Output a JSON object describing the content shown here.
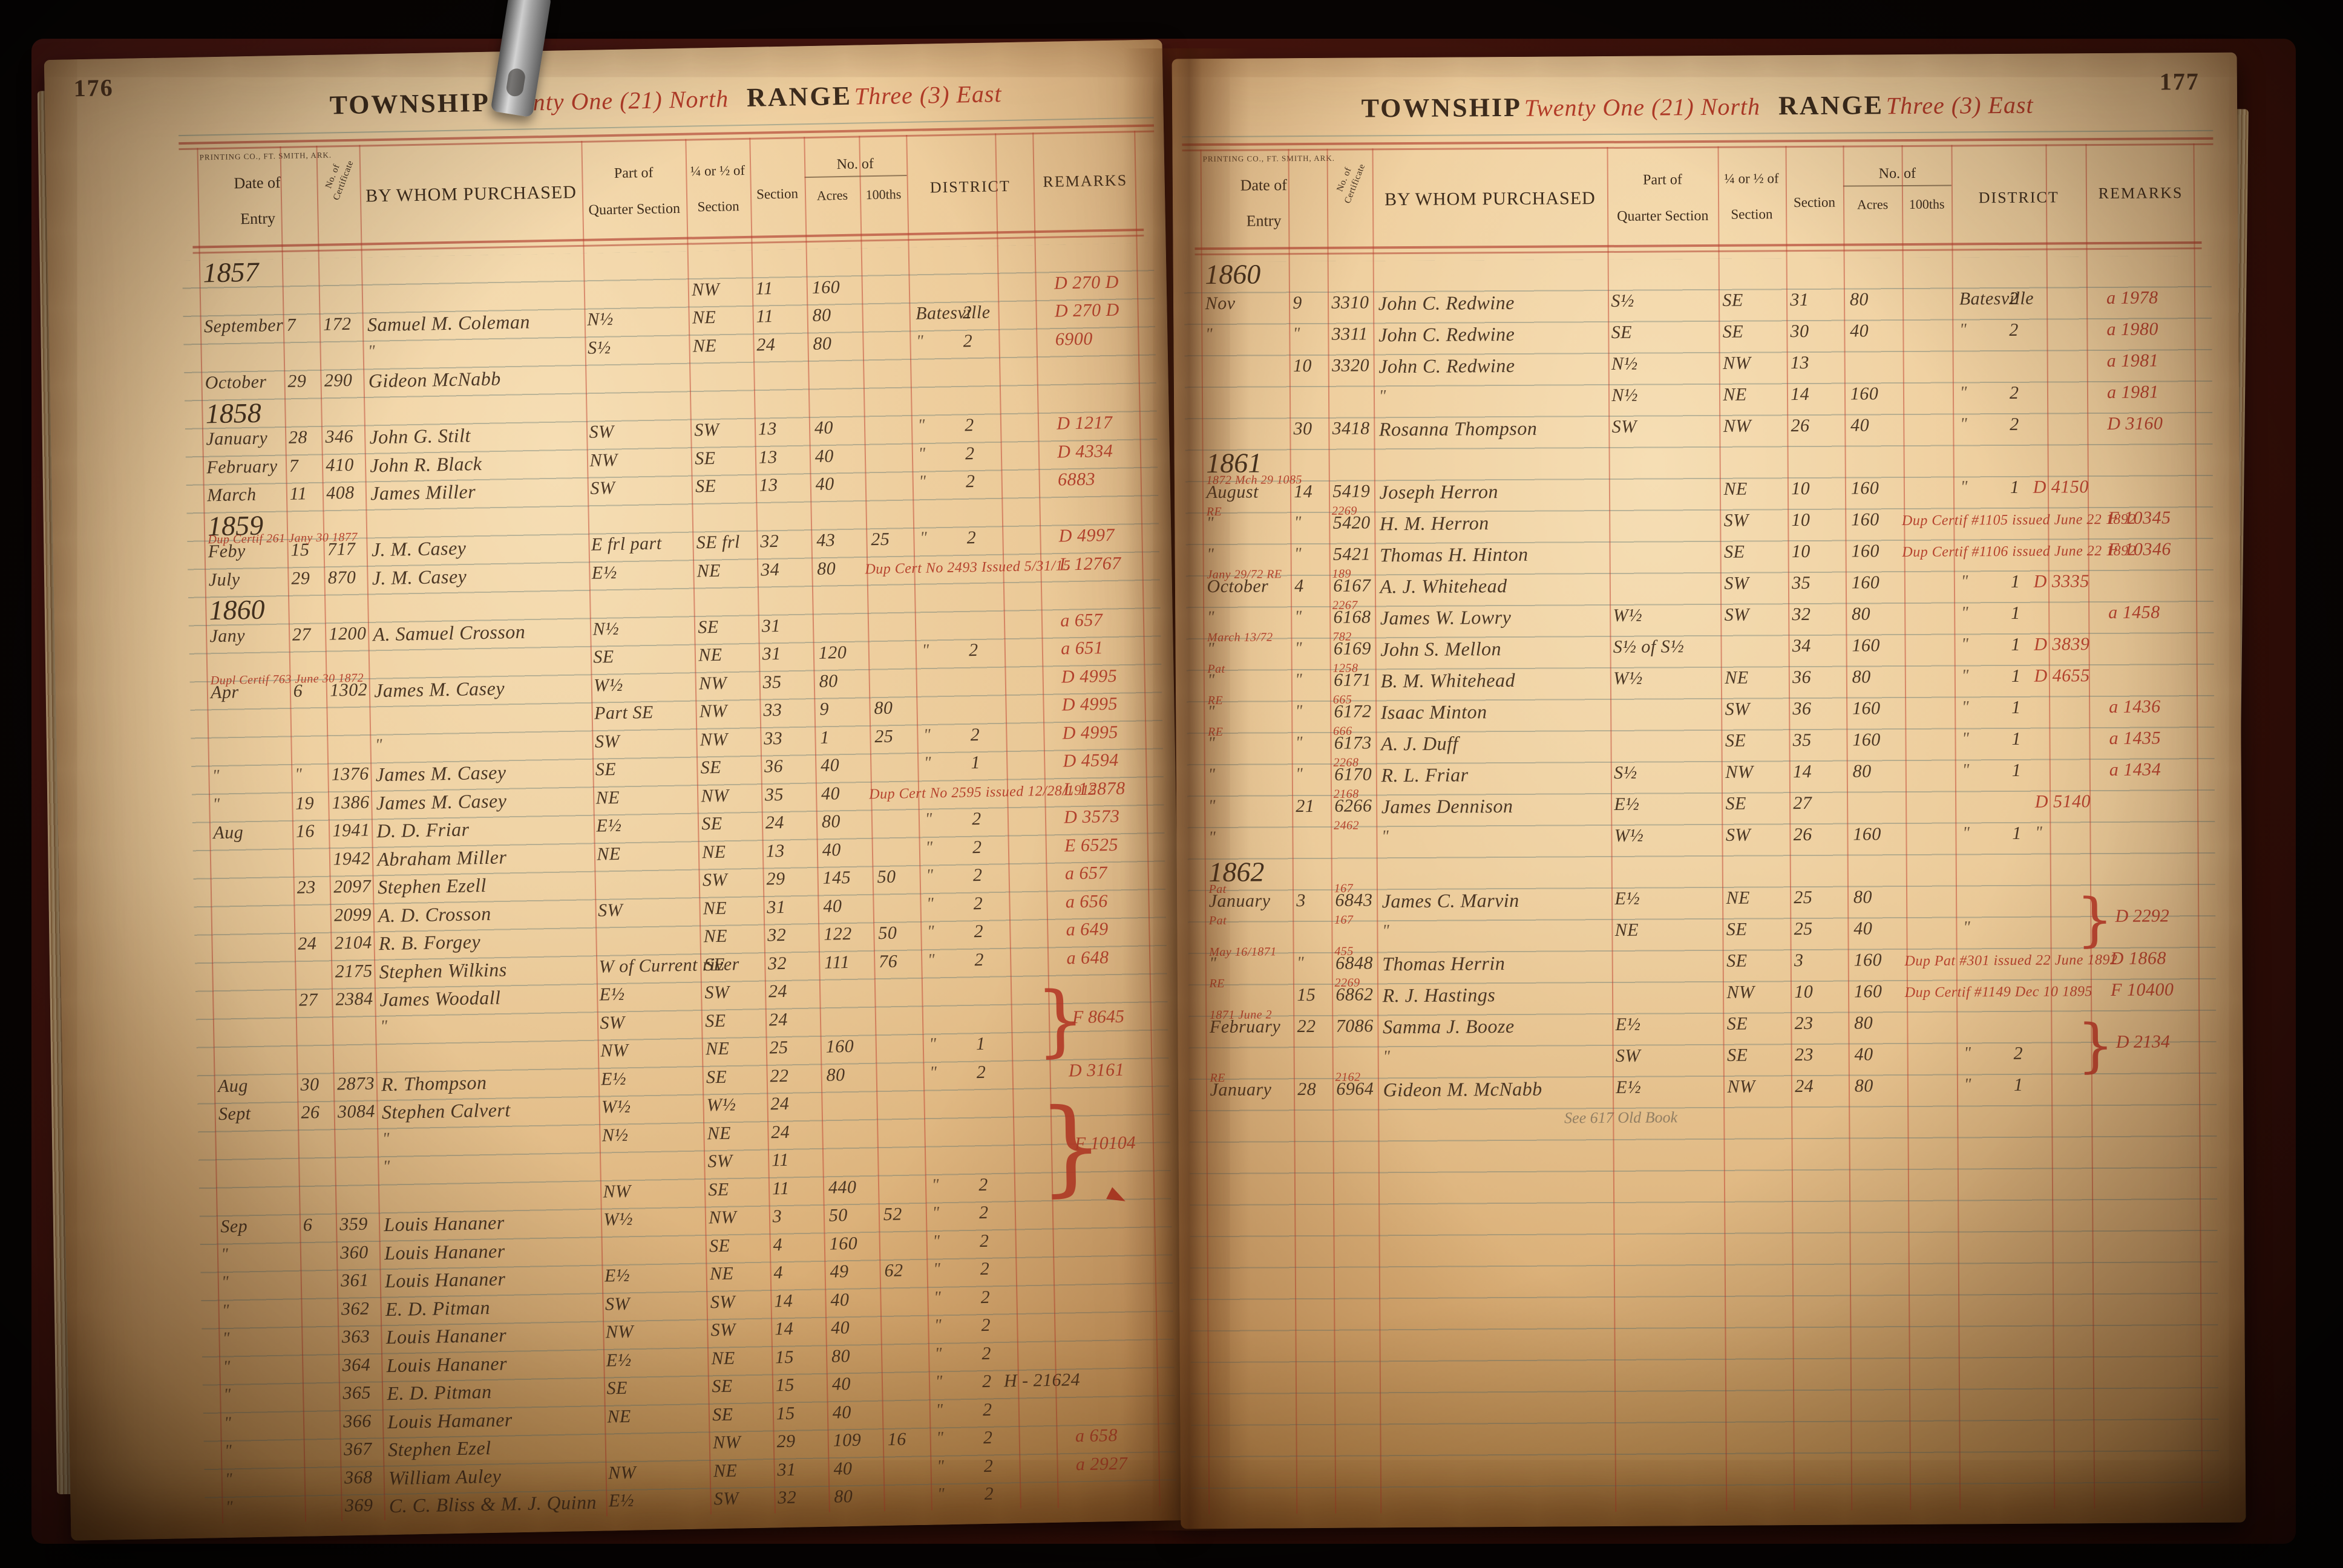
{
  "photo": {
    "description": "Ledger book opened to pages 176-177, land entry records"
  },
  "columns": {
    "date1": "Date of",
    "date2": "Entry",
    "cert": "No. of Certificate",
    "name": "BY WHOM PURCHASED",
    "part1": "Part of",
    "part2": "Quarter Section",
    "q1": "¼ or ½ of",
    "q2": "Section",
    "sec": "Section",
    "noof": "No. of",
    "acres": "Acres",
    "hund": "100ths",
    "district": "DISTRICT",
    "remarks": "REMARKS"
  },
  "left_page": {
    "page_no": "176",
    "township_label": "TOWNSHIP",
    "township": "Twenty One (21) North",
    "range_label": "RANGE",
    "range": "Three (3) East",
    "imprint": "PRINTING CO., FT. SMITH, ARK.",
    "rows": [
      {
        "t": "y",
        "d": "1857"
      },
      {
        "q": "NW",
        "s": "11",
        "a": "160",
        "ra": "D 270 D"
      },
      {
        "d": "September",
        "dy": "7",
        "c": "172",
        "nm": "Samuel M. Coleman",
        "pt": "N½",
        "q": "NE",
        "s": "11",
        "a": "80",
        "di": "Batesville",
        "dn": "2",
        "ra": "D 270 D"
      },
      {
        "nm": "\"",
        "pt": "S½",
        "q": "NE",
        "s": "24",
        "a": "80",
        "di": "\"",
        "dn": "2",
        "ra": "6900"
      },
      {
        "d": "October",
        "dy": "29",
        "c": "290",
        "nm": "Gideon McNabb"
      },
      {
        "t": "y",
        "d": "1858"
      },
      {
        "d": "January",
        "dy": "28",
        "c": "346",
        "nm": "John G. Stilt",
        "pt": "SW",
        "q": "SW",
        "s": "13",
        "a": "40",
        "di": "\"",
        "dn": "2",
        "ra": "D 1217"
      },
      {
        "d": "February",
        "dy": "7",
        "c": "410",
        "nm": "John R. Black",
        "pt": "NW",
        "q": "SE",
        "s": "13",
        "a": "40",
        "di": "\"",
        "dn": "2",
        "ra": "D 4334"
      },
      {
        "d": "March",
        "dy": "11",
        "c": "408",
        "nm": "James Miller",
        "pt": "SW",
        "q": "SE",
        "s": "13",
        "a": "40",
        "di": "\"",
        "dn": "2",
        "ra": "6883"
      },
      {
        "t": "y",
        "d": "1859"
      },
      {
        "d": "Feby",
        "dy": "15",
        "c": "717",
        "p": "Dup Certif 261  Jany 30 1877",
        "nm": "J. M. Casey",
        "pt": "E frl part",
        "q": "SE frl",
        "s": "32",
        "a": "43",
        "h": "25",
        "di": "\"",
        "dn": "2",
        "ra": "D 4997"
      },
      {
        "d": "July",
        "dy": "29",
        "c": "870",
        "nm": "J. M. Casey",
        "pt": "E½",
        "q": "NE",
        "s": "34",
        "a": "80",
        "rb": "Dup Cert No 2493  Issued 5/31/15",
        "ra": "L 12767"
      },
      {
        "t": "y",
        "d": "1860"
      },
      {
        "d": "Jany",
        "dy": "27",
        "c": "1200",
        "nm": "A. Samuel Crosson",
        "pt": "N½",
        "q": "SE",
        "s": "31",
        "ra": "a 657"
      },
      {
        "pt": "SE",
        "q": "NE",
        "s": "31",
        "a": "120",
        "di": "\"",
        "dn": "2",
        "ra": "a 651"
      },
      {
        "d": "Apr",
        "dy": "6",
        "c": "1302",
        "p": "Dupl Certif 763  June 30 1872",
        "nm": "James M. Casey",
        "pt": "W½",
        "q": "NW",
        "s": "35",
        "a": "80",
        "ra": "D 4995"
      },
      {
        "pt": "Part SE",
        "q": "NW",
        "s": "33",
        "a": "9",
        "h": "80",
        "ra": "D 4995"
      },
      {
        "nm": "\"",
        "pt": "SW",
        "q": "NW",
        "s": "33",
        "a": "1",
        "h": "25",
        "di": "\"",
        "dn": "2",
        "ra": "D 4995"
      },
      {
        "d": "\"",
        "dy": "\"",
        "c": "1376",
        "nm": "James M. Casey",
        "pt": "SE",
        "q": "SE",
        "s": "36",
        "a": "40",
        "di": "\"",
        "dn": "1",
        "ra": "D 4594"
      },
      {
        "d": "\"",
        "dy": "19",
        "c": "1386",
        "nm": "James M. Casey",
        "pt": "NE",
        "q": "NW",
        "s": "35",
        "a": "40",
        "rb": "Dup Cert No 2595  issued 12/28/1915",
        "ra": "L 12878"
      },
      {
        "d": "Aug",
        "dy": "16",
        "c": "1941",
        "nm": "D. D. Friar",
        "pt": "E½",
        "q": "SE",
        "s": "24",
        "a": "80",
        "di": "\"",
        "dn": "2",
        "ra": "D 3573"
      },
      {
        "c": "1942",
        "nm": "Abraham Miller",
        "pt": "NE",
        "q": "NE",
        "s": "13",
        "a": "40",
        "di": "\"",
        "dn": "2",
        "ra": "E 6525"
      },
      {
        "dy": "23",
        "c": "2097",
        "nm": "Stephen Ezell",
        "q": "SW",
        "s": "29",
        "a": "145",
        "h": "50",
        "di": "\"",
        "dn": "2",
        "ra": "a 657"
      },
      {
        "c": "2099",
        "nm": "A. D. Crosson",
        "pt": "SW",
        "q": "NE",
        "s": "31",
        "a": "40",
        "di": "\"",
        "dn": "2",
        "ra": "a 656"
      },
      {
        "dy": "24",
        "c": "2104",
        "nm": "R. B. Forgey",
        "q": "NE",
        "s": "32",
        "a": "122",
        "h": "50",
        "di": "\"",
        "dn": "2",
        "ra": "a 649"
      },
      {
        "c": "2175",
        "nm": "Stephen Wilkins",
        "pt": "W of Current river",
        "q": "SE",
        "s": "32",
        "a": "111",
        "h": "76",
        "di": "\"",
        "dn": "2",
        "ra": "a 648"
      },
      {
        "dy": "27",
        "c": "2384",
        "nm": "James Woodall",
        "pt": "E½",
        "q": "SW",
        "s": "24",
        "br": {
          "n": 3,
          "l": "F 8645"
        }
      },
      {
        "nm": "\"",
        "pt": "SW",
        "q": "SE",
        "s": "24"
      },
      {
        "pt": "NW",
        "q": "NE",
        "s": "25",
        "a": "160",
        "di": "\"",
        "dn": "1"
      },
      {
        "d": "Aug",
        "dy": "30",
        "c": "2873",
        "nm": "R. Thompson",
        "pt": "E½",
        "q": "SE",
        "s": "22",
        "a": "80",
        "di": "\"",
        "dn": "2",
        "ra": "D 3161"
      },
      {
        "d": "Sept",
        "dy": "26",
        "c": "3084",
        "nm": "Stephen Calvert",
        "pt": "W½",
        "q": "W½",
        "s": "24",
        "br": {
          "n": 4,
          "l": "F 10104"
        },
        "ar": true
      },
      {
        "nm": "\"",
        "pt": "N½",
        "q": "NE",
        "s": "24"
      },
      {
        "nm": "\"",
        "q": "SW",
        "s": "11"
      },
      {
        "pt": "NW",
        "q": "SE",
        "s": "11",
        "a": "440",
        "di": "\"",
        "dn": "2"
      },
      {
        "d": "Sep",
        "dy": "6",
        "c": "359",
        "nm": "Louis Hananer",
        "pt": "W½",
        "q": "NW",
        "s": "3",
        "a": "50",
        "h": "52",
        "di": "\"",
        "dn": "2"
      },
      {
        "d": "\"",
        "c": "360",
        "nm": "Louis Hananer",
        "q": "SE",
        "s": "4",
        "a": "160",
        "di": "\"",
        "dn": "2"
      },
      {
        "d": "\"",
        "c": "361",
        "nm": "Louis Hananer",
        "pt": "E½",
        "q": "NE",
        "s": "4",
        "a": "49",
        "h": "62",
        "di": "\"",
        "dn": "2"
      },
      {
        "d": "\"",
        "c": "362",
        "nm": "E. D. Pitman",
        "pt": "SW",
        "q": "SW",
        "s": "14",
        "a": "40",
        "di": "\"",
        "dn": "2"
      },
      {
        "d": "\"",
        "c": "363",
        "nm": "Louis Hananer",
        "pt": "NW",
        "q": "SW",
        "s": "14",
        "a": "40",
        "di": "\"",
        "dn": "2"
      },
      {
        "d": "\"",
        "c": "364",
        "nm": "Louis Hananer",
        "pt": "E½",
        "q": "NE",
        "s": "15",
        "a": "80",
        "di": "\"",
        "dn": "2"
      },
      {
        "d": "\"",
        "c": "365",
        "nm": "E. D. Pitman",
        "pt": "SE",
        "q": "SE",
        "s": "15",
        "a": "40",
        "di": "\"",
        "dn": "2",
        "rk": "H - 21624"
      },
      {
        "d": "\"",
        "c": "366",
        "nm": "Louis Hamaner",
        "pt": "NE",
        "q": "SE",
        "s": "15",
        "a": "40",
        "di": "\"",
        "dn": "2"
      },
      {
        "d": "\"",
        "c": "367",
        "nm": "Stephen Ezel",
        "q": "NW",
        "s": "29",
        "a": "109",
        "h": "16",
        "di": "\"",
        "dn": "2",
        "ra": "a 658"
      },
      {
        "d": "\"",
        "c": "368",
        "nm": "William Auley",
        "pt": "NW",
        "q": "NE",
        "s": "31",
        "a": "40",
        "di": "\"",
        "dn": "2",
        "ra": "a 2927"
      },
      {
        "d": "\"",
        "c": "369",
        "nm": "C. C. Bliss & M. J. Quinn",
        "pt": "E½",
        "q": "SW",
        "s": "32",
        "a": "80",
        "di": "\"",
        "dn": "2"
      }
    ]
  },
  "right_page": {
    "page_no": "177",
    "township_label": "TOWNSHIP",
    "township": "Twenty One (21) North",
    "range_label": "RANGE",
    "range": "Three (3) East",
    "imprint": "PRINTING CO., FT. SMITH, ARK.",
    "rows": [
      {
        "t": "y",
        "d": "1860"
      },
      {
        "d": "Nov",
        "dy": "9",
        "c": "3310",
        "nm": "John C. Redwine",
        "pt": "S½",
        "q": "SE",
        "s": "31",
        "a": "80",
        "di": "Batesville",
        "dn": "2",
        "ra": "a 1978"
      },
      {
        "d": "\"",
        "dy": "\"",
        "c": "3311",
        "nm": "John C. Redwine",
        "pt": "SE",
        "q": "SE",
        "s": "30",
        "a": "40",
        "di": "\"",
        "dn": "2",
        "ra": "a 1980"
      },
      {
        "dy": "10",
        "c": "3320",
        "nm": "John C. Redwine",
        "pt": "N½",
        "q": "NW",
        "s": "13",
        "ra": "a 1981"
      },
      {
        "nm": "\"",
        "pt": "N½",
        "q": "NE",
        "s": "14",
        "a": "160",
        "di": "\"",
        "dn": "2",
        "ra": "a 1981"
      },
      {
        "dy": "30",
        "c": "3418",
        "nm": "Rosanna Thompson",
        "pt": "SW",
        "q": "NW",
        "s": "26",
        "a": "40",
        "di": "\"",
        "dn": "2",
        "ra": "D 3160"
      },
      {
        "t": "y",
        "d": "1861"
      },
      {
        "d": "August",
        "dy": "14",
        "c": "5419",
        "p": "1872 Mch 29   1085",
        "nm": "Joseph Herron",
        "q": "NE",
        "s": "10",
        "a": "160",
        "di": "\"",
        "dn": "1",
        "rm": "D 4150"
      },
      {
        "d": "\"",
        "dy": "\"",
        "c": "5420",
        "p": "RE",
        "cr": "2269",
        "nm": "H. M. Herron",
        "q": "SW",
        "s": "10",
        "a": "160",
        "rb": "Dup Certif #1105  issued June 22 1892",
        "ra": "F 10345"
      },
      {
        "d": "\"",
        "dy": "\"",
        "c": "5421",
        "nm": "Thomas H. Hinton",
        "q": "SE",
        "s": "10",
        "a": "160",
        "rb": "Dup Certif #1106  issued June 22 1892",
        "ra": "F 10346"
      },
      {
        "d": "October",
        "dy": "4",
        "c": "6167",
        "p": "Jany 29/72   RE",
        "cr": "189",
        "nm": "A. J. Whitehead",
        "q": "SW",
        "s": "35",
        "a": "160",
        "di": "\"",
        "dn": "1",
        "rm": "D 3335"
      },
      {
        "d": "\"",
        "dy": "\"",
        "c": "6168",
        "cr": "2267",
        "nm": "James W. Lowry",
        "pt": "W½",
        "q": "SW",
        "s": "32",
        "a": "80",
        "di": "\"",
        "dn": "1",
        "ra": "a 1458"
      },
      {
        "d": "\"",
        "dy": "\"",
        "c": "6169",
        "p": "March 13/72",
        "cr": "782",
        "nm": "John S. Mellon",
        "pt": "S½ of S½",
        "s": "34",
        "a": "160",
        "di": "\"",
        "dn": "1",
        "rm": "D 3839"
      },
      {
        "d": "\"",
        "dy": "\"",
        "c": "6171",
        "p": "Pat",
        "cr": "1258",
        "nm": "B. M. Whitehead",
        "pt": "W½",
        "q": "NE",
        "s": "36",
        "a": "80",
        "di": "\"",
        "dn": "1",
        "rm": "D 4655"
      },
      {
        "d": "\"",
        "dy": "\"",
        "c": "6172",
        "p": "RE",
        "cr": "665",
        "nm": "Isaac Minton",
        "q": "SW",
        "s": "36",
        "a": "160",
        "di": "\"",
        "dn": "1",
        "ra": "a 1436"
      },
      {
        "d": "\"",
        "dy": "\"",
        "c": "6173",
        "p": "RE",
        "cr": "666",
        "nm": "A. J. Duff",
        "q": "SE",
        "s": "35",
        "a": "160",
        "di": "\"",
        "dn": "1",
        "ra": "a 1435"
      },
      {
        "d": "\"",
        "dy": "\"",
        "c": "6170",
        "cr": "2268",
        "nm": "R. L. Friar",
        "pt": "S½",
        "q": "NW",
        "s": "14",
        "a": "80",
        "di": "\"",
        "dn": "1",
        "ra": "a 1434"
      },
      {
        "d": "\"",
        "dy": "21",
        "c": "6266",
        "cr": "2168",
        "nm": "James Dennison",
        "pt": "E½",
        "q": "SE",
        "s": "27",
        "rm": "D 5140"
      },
      {
        "d": "\"",
        "cr": "2462",
        "nm": "\"",
        "pt": "W½",
        "q": "SW",
        "s": "26",
        "a": "160",
        "di": "\"",
        "dn": "1",
        "rm": "\""
      },
      {
        "t": "y",
        "d": "1862"
      },
      {
        "d": "January",
        "dy": "3",
        "c": "6843",
        "p": "Pat",
        "cr": "167",
        "nm": "James C. Marvin",
        "pt": "E½",
        "q": "NE",
        "s": "25",
        "a": "80",
        "br": {
          "n": 2,
          "l": "D 2292"
        }
      },
      {
        "p": "Pat",
        "cr": "167",
        "nm": "\"",
        "pt": "NE",
        "q": "SE",
        "s": "25",
        "a": "40",
        "di": "\""
      },
      {
        "d": "\"",
        "dy": "\"",
        "c": "6848",
        "p": "May 16/1871",
        "cr": "455",
        "nm": "Thomas Herrin",
        "q": "SE",
        "s": "3",
        "a": "160",
        "rb": "Dup Pat #301  issued 22 June 1892",
        "ra": "D 1868"
      },
      {
        "dy": "15",
        "c": "6862",
        "p": "RE",
        "cr": "2269",
        "nm": "R. J. Hastings",
        "q": "NW",
        "s": "10",
        "a": "160",
        "rb": "Dup Certif #1149  Dec 10 1895",
        "ra": "F 10400"
      },
      {
        "d": "February",
        "dy": "22",
        "c": "7086",
        "p": "1871 June 2",
        "nm": "Samma J. Booze",
        "pt": "E½",
        "q": "SE",
        "s": "23",
        "a": "80",
        "br": {
          "n": 2,
          "l": "D 2134"
        }
      },
      {
        "nm": "\"",
        "pt": "SW",
        "q": "SE",
        "s": "23",
        "a": "40",
        "di": "\"",
        "dn": "2"
      },
      {
        "d": "January",
        "dy": "28",
        "c": "6964",
        "p": "RE",
        "cr": "2162",
        "nm": "Gideon M. McNabb",
        "pt": "E½",
        "q": "NW",
        "s": "24",
        "a": "80",
        "di": "\"",
        "dn": "1"
      },
      {
        "t": "n",
        "nm": "See 617 Old Book"
      }
    ]
  }
}
